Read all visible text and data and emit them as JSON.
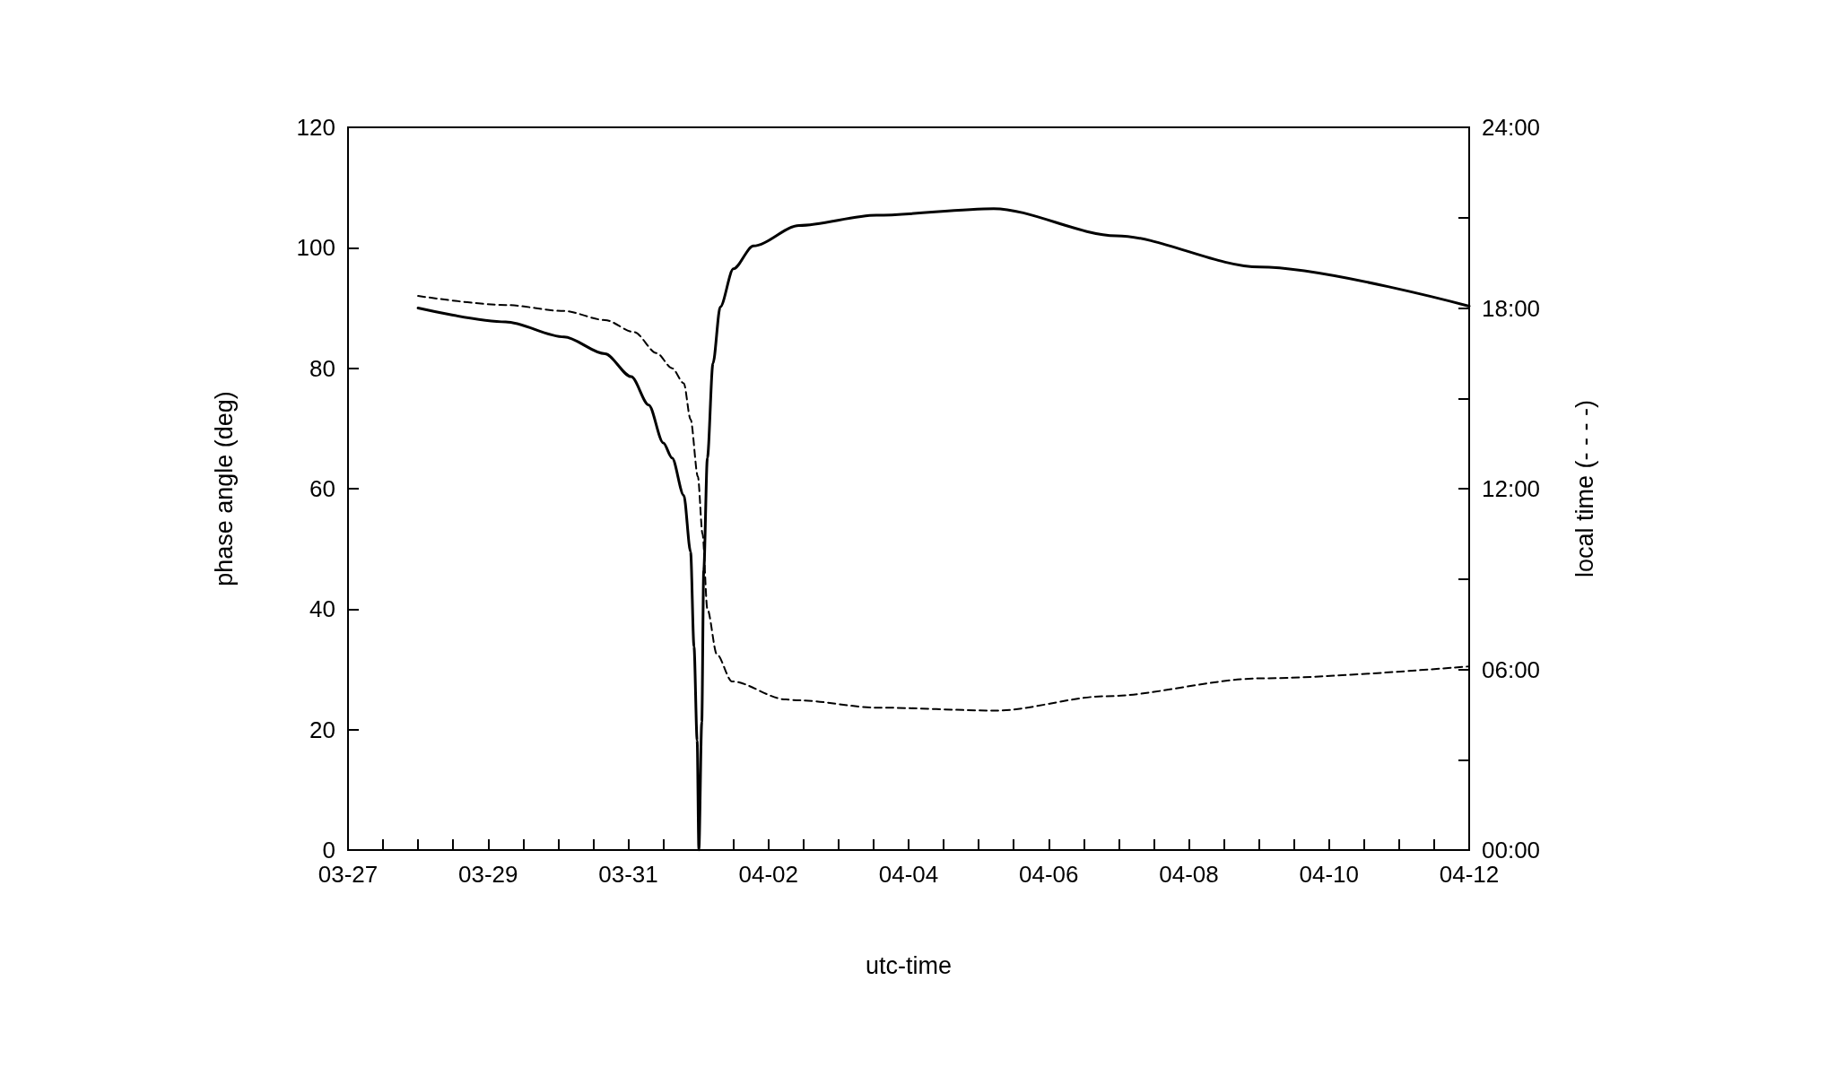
{
  "chart_data": {
    "type": "line",
    "xlabel": "utc-time",
    "ylabel": "phase angle (deg)",
    "y2label": "local time (- - - -)",
    "xlim": [
      "--03-27",
      "--04-12"
    ],
    "xticks": [
      {
        "value": "--03-27",
        "label": "03-27"
      },
      {
        "value": "--03-27T12:00",
        "label": null
      },
      {
        "value": "--03-28",
        "label": null
      },
      {
        "value": "--03-28T12:00",
        "label": null
      },
      {
        "value": "--03-29",
        "label": "03-29"
      },
      {
        "value": "--03-29T12:00",
        "label": null
      },
      {
        "value": "--03-30",
        "label": null
      },
      {
        "value": "--03-30T12:00",
        "label": null
      },
      {
        "value": "--03-31",
        "label": "03-31"
      },
      {
        "value": "--03-31T12:00",
        "label": null
      },
      {
        "value": "--04-01",
        "label": null
      },
      {
        "value": "--04-01T12:00",
        "label": null
      },
      {
        "value": "--04-02",
        "label": "04-02"
      },
      {
        "value": "--04-02T12:00",
        "label": null
      },
      {
        "value": "--04-03",
        "label": null
      },
      {
        "value": "--04-03T12:00",
        "label": null
      },
      {
        "value": "--04-04",
        "label": "04-04"
      },
      {
        "value": "--04-04T12:00",
        "label": null
      },
      {
        "value": "--04-05",
        "label": null
      },
      {
        "value": "--04-05T12:00",
        "label": null
      },
      {
        "value": "--04-06",
        "label": "04-06"
      },
      {
        "value": "--04-06T12:00",
        "label": null
      },
      {
        "value": "--04-07",
        "label": null
      },
      {
        "value": "--04-07T12:00",
        "label": null
      },
      {
        "value": "--04-08",
        "label": "04-08"
      },
      {
        "value": "--04-08T12:00",
        "label": null
      },
      {
        "value": "--04-09",
        "label": null
      },
      {
        "value": "--04-09T12:00",
        "label": null
      },
      {
        "value": "--04-10",
        "label": "04-10"
      },
      {
        "value": "--04-10T12:00",
        "label": null
      },
      {
        "value": "--04-11",
        "label": null
      },
      {
        "value": "--04-11T12:00",
        "label": null
      },
      {
        "value": "--04-12",
        "label": "04-12"
      }
    ],
    "ylim": [
      0,
      120
    ],
    "yticks": [
      0,
      20,
      40,
      60,
      80,
      100,
      120
    ],
    "y2lim": [
      0,
      24
    ],
    "y2ticks": [
      {
        "value": 0,
        "label": "00:00"
      },
      {
        "value": 3,
        "label": null
      },
      {
        "value": 6,
        "label": "06:00"
      },
      {
        "value": 9,
        "label": null
      },
      {
        "value": 12,
        "label": "12:00"
      },
      {
        "value": 15,
        "label": null
      },
      {
        "value": 18,
        "label": "18:00"
      },
      {
        "value": 21,
        "label": null
      },
      {
        "value": 24,
        "label": "24:00"
      }
    ],
    "grid": false,
    "marker": "none",
    "series": [
      {
        "color": "#000000",
        "line_style": "solid",
        "x": [
          "--03-28T00:00",
          "--03-29T06:00",
          "--03-30T02:00",
          "--03-30T16:00",
          "--03-31T01:00",
          "--03-31T07:00",
          "--03-31T12:00",
          "--03-31T15:00",
          "--03-31T19:00",
          "--03-31T21:20",
          "--03-31T22:30",
          "--03-31T23:35",
          "--04-01T00:10",
          "--04-01T01:10",
          "--04-01T01:50",
          "--04-01T03:05",
          "--04-01T05:00",
          "--04-01T07:30",
          "--04-01T12:00",
          "--04-01T18:50",
          "--04-02T10:30",
          "--04-03T13:00",
          "--04-05T05:10",
          "--04-06T23:10",
          "--04-09T00:15",
          "--04-12T00:00"
        ],
        "values": [
          90,
          87.7,
          85.2,
          82.4,
          78.6,
          73.9,
          67.6,
          65.1,
          58.9,
          49.5,
          33.8,
          18.2,
          0,
          21.3,
          46.4,
          65.1,
          80.8,
          90.2,
          96.5,
          100.3,
          103.7,
          105.4,
          106.5,
          102,
          96.8,
          90.3
        ]
      },
      {
        "color": "#000000",
        "line_style": "dashed",
        "axis": "y2",
        "x": [
          "--03-28T00:00",
          "--03-29T06:00",
          "--03-30T02:00",
          "--03-30T16:00",
          "--03-31T02:00",
          "--03-31T09:45",
          "--03-31T15:00",
          "--03-31T19:00",
          "--03-31T21:20",
          "--03-31T23:50",
          "--04-01T01:25",
          "--04-01T03:05",
          "--04-01T06:20",
          "--04-01T11:30",
          "--04-02T06:00",
          "--04-02T10:30",
          "--04-03T13:00",
          "--04-05T06:00",
          "--04-06T19:40",
          "--04-09T00:15",
          "--04-12T00:00"
        ],
        "values": [
          18.4,
          18.1,
          17.9,
          17.6,
          17.2,
          16.5,
          16,
          15.5,
          14.3,
          12.4,
          10.5,
          8,
          6.5,
          5.6,
          5,
          4.97,
          4.73,
          4.63,
          5.11,
          5.7,
          6.1
        ]
      }
    ]
  }
}
